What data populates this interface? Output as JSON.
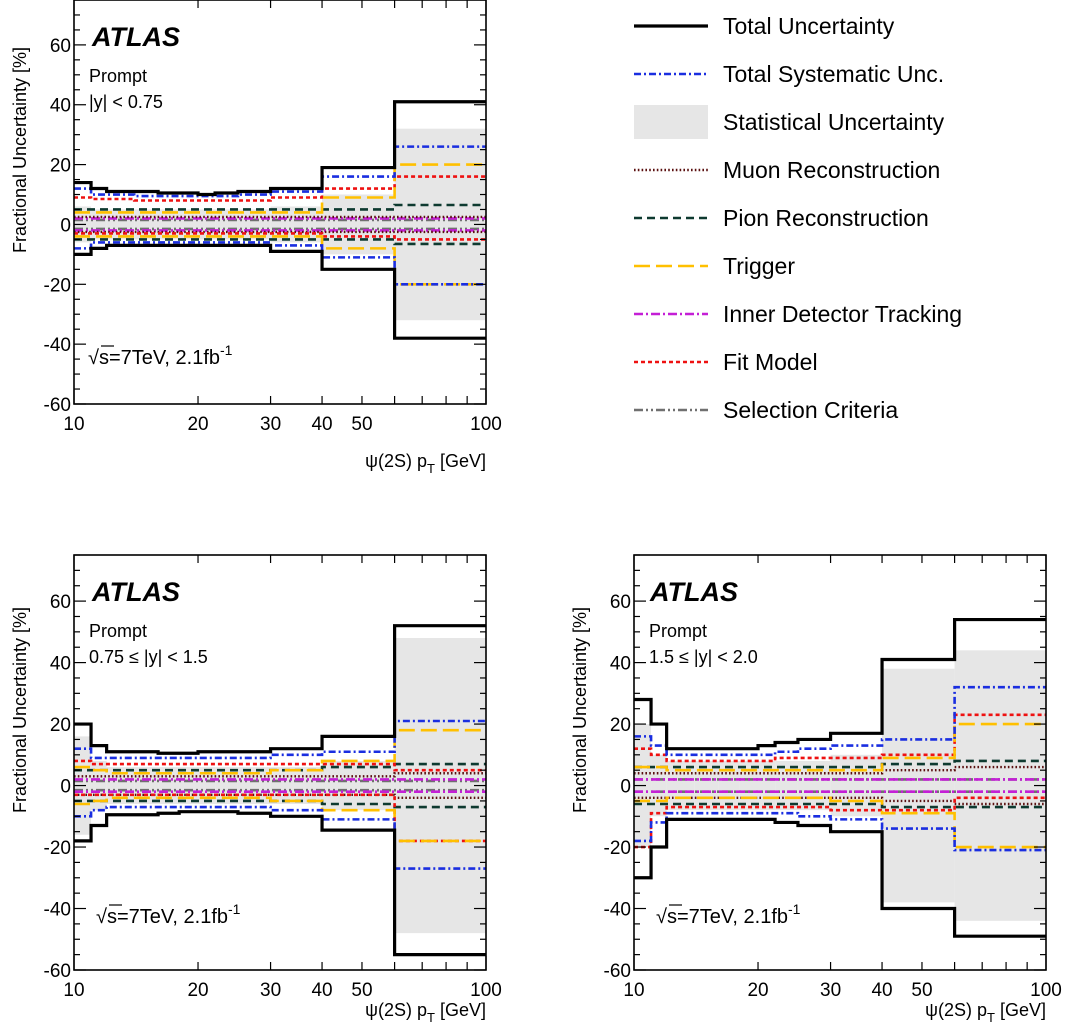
{
  "chart_data": [
    {
      "type": "line",
      "panel": "top-left",
      "experiment": "ATLAS",
      "title": "Prompt",
      "subtitle": "|y| < 0.75",
      "energy_label": {
        "sqrts": "s",
        "rest": "=7TeV, 2.1fb",
        "sup": "-1"
      },
      "xlabel": {
        "main": "ψ(2S) p",
        "sub": "T",
        "tail": " [GeV]"
      },
      "ylabel": "Fractional Uncertainty [%]",
      "xscale": "log",
      "xlim": [
        10,
        100
      ],
      "ylim": [
        -60,
        75
      ],
      "xticks": [
        10,
        20,
        30,
        40,
        50,
        100
      ],
      "yticks": [
        -60,
        -40,
        -20,
        0,
        20,
        40,
        60
      ],
      "bin_edges": [
        10,
        11,
        12,
        14,
        16,
        18,
        20,
        22,
        25,
        30,
        40,
        60,
        100
      ],
      "stat_band": {
        "name": "Statistical Uncertainty",
        "up": [
          6,
          5,
          5,
          5,
          5,
          5,
          5,
          5,
          5,
          6,
          10,
          32
        ],
        "down": [
          -6,
          -5,
          -5,
          -5,
          -5,
          -5,
          -5,
          -5,
          -5,
          -6,
          -10,
          -32
        ]
      },
      "series": [
        {
          "name": "Total Uncertainty",
          "up": [
            14,
            12,
            11,
            11,
            10.5,
            10.5,
            10,
            10.5,
            11,
            12,
            19,
            41
          ],
          "down": [
            -10,
            -8,
            -7,
            -7,
            -7,
            -7,
            -7,
            -7,
            -7,
            -9,
            -15,
            -38
          ]
        },
        {
          "name": "Total Systematic Unc.",
          "up": [
            12,
            10,
            10,
            9.5,
            9.5,
            9.5,
            9.5,
            9.5,
            10,
            11,
            16,
            26
          ],
          "down": [
            -8,
            -6,
            -6,
            -6,
            -6,
            -6,
            -6,
            -6,
            -6,
            -7,
            -11,
            -20
          ]
        },
        {
          "name": "Muon Reconstruction",
          "up": [
            2.5,
            2.5,
            2.5,
            2.5,
            2.5,
            2.5,
            2.5,
            2.5,
            2.5,
            2.5,
            2.5,
            2.5
          ],
          "down": [
            -2.5,
            -2.5,
            -2.5,
            -2.5,
            -2.5,
            -2.5,
            -2.5,
            -2.5,
            -2.5,
            -2.5,
            -2.5,
            -2.5
          ]
        },
        {
          "name": "Pion Reconstruction",
          "up": [
            5,
            5,
            5,
            5,
            5,
            5,
            5,
            5,
            5,
            5,
            5,
            6.5
          ],
          "down": [
            -5,
            -5,
            -5,
            -5,
            -5,
            -5,
            -5,
            -5,
            -5,
            -5,
            -5,
            -6.5
          ]
        },
        {
          "name": "Trigger",
          "up": [
            4,
            4,
            4,
            4,
            4,
            4,
            4,
            4,
            4,
            4,
            9,
            20
          ],
          "down": [
            -4,
            -4,
            -4,
            -4,
            -4,
            -4,
            -4,
            -4,
            -4,
            -4,
            -8,
            -20
          ]
        },
        {
          "name": "Inner Detector Tracking",
          "up": [
            2,
            2,
            2,
            2,
            2,
            2,
            2,
            2,
            2,
            2,
            2,
            2
          ],
          "down": [
            -2,
            -2,
            -2,
            -2,
            -2,
            -2,
            -2,
            -2,
            -2,
            -2,
            -2,
            -2
          ]
        },
        {
          "name": "Fit Model",
          "up": [
            9,
            8.5,
            8.5,
            8,
            8,
            8,
            8,
            8,
            8,
            9,
            12,
            16
          ],
          "down": [
            -3,
            -3,
            -3,
            -3,
            -3,
            -3,
            -3,
            -3,
            -3,
            -3,
            -4,
            -5
          ]
        },
        {
          "name": "Selection Criteria",
          "up": [
            1.5,
            1.5,
            1.5,
            1.5,
            1.5,
            1.5,
            1.5,
            1.5,
            1.5,
            1.5,
            1.5,
            1.5
          ],
          "down": [
            -1.5,
            -1.5,
            -1.5,
            -1.5,
            -1.5,
            -1.5,
            -1.5,
            -1.5,
            -1.5,
            -1.5,
            -1.5,
            -1.5
          ]
        }
      ]
    },
    {
      "type": "line",
      "panel": "bottom-left",
      "experiment": "ATLAS",
      "title": "Prompt",
      "subtitle": "0.75 ≤ |y| < 1.5",
      "energy_label": {
        "sqrts": "s",
        "rest": "=7TeV, 2.1fb",
        "sup": "-1"
      },
      "xlabel": {
        "main": "ψ(2S) p",
        "sub": "T",
        "tail": " [GeV]"
      },
      "ylabel": "Fractional Uncertainty [%]",
      "xscale": "log",
      "xlim": [
        10,
        100
      ],
      "ylim": [
        -60,
        75
      ],
      "xticks": [
        10,
        20,
        30,
        40,
        50,
        100
      ],
      "yticks": [
        -60,
        -40,
        -20,
        0,
        20,
        40,
        60
      ],
      "bin_edges": [
        10,
        11,
        12,
        14,
        16,
        18,
        20,
        22,
        25,
        30,
        40,
        60,
        100
      ],
      "stat_band": {
        "name": "Statistical Uncertainty",
        "up": [
          16,
          8,
          6,
          6,
          6,
          6,
          6,
          6,
          6,
          6,
          8,
          48
        ],
        "down": [
          -16,
          -8,
          -6,
          -6,
          -6,
          -6,
          -6,
          -6,
          -6,
          -6,
          -8,
          -48
        ]
      },
      "series": [
        {
          "name": "Total Uncertainty",
          "up": [
            20,
            13,
            11,
            11,
            10.5,
            10.5,
            11,
            11,
            11,
            12,
            16,
            52
          ],
          "down": [
            -18,
            -13,
            -9.5,
            -9.5,
            -9,
            -8.5,
            -8.5,
            -8.5,
            -9,
            -10,
            -14.5,
            -55
          ]
        },
        {
          "name": "Total Systematic Unc.",
          "up": [
            12,
            9,
            9,
            9,
            9,
            9,
            9,
            9,
            9,
            10,
            11,
            21
          ],
          "down": [
            -10,
            -8,
            -7,
            -7,
            -7,
            -7,
            -7,
            -7,
            -7,
            -8,
            -11,
            -27
          ]
        },
        {
          "name": "Muon Reconstruction",
          "up": [
            3,
            3,
            3,
            3,
            3,
            3,
            3,
            3,
            3,
            3,
            3,
            4
          ],
          "down": [
            -3,
            -3,
            -3,
            -3,
            -3,
            -3,
            -3,
            -3,
            -3,
            -3,
            -3,
            -4
          ]
        },
        {
          "name": "Pion Reconstruction",
          "up": [
            5,
            5,
            5,
            5,
            5,
            5,
            5,
            5,
            5,
            5,
            6,
            7
          ],
          "down": [
            -5,
            -5,
            -5,
            -5,
            -5,
            -5,
            -5,
            -5,
            -5,
            -5,
            -6,
            -7
          ]
        },
        {
          "name": "Trigger",
          "up": [
            6,
            5,
            4,
            4,
            4,
            4,
            4,
            4,
            4,
            5,
            8,
            18
          ],
          "down": [
            -6,
            -5,
            -4,
            -4,
            -4,
            -4,
            -4,
            -4,
            -4,
            -5,
            -8,
            -18
          ]
        },
        {
          "name": "Inner Detector Tracking",
          "up": [
            2,
            2,
            2,
            2,
            2,
            2,
            2,
            2,
            2,
            2,
            2,
            2
          ],
          "down": [
            -2,
            -2,
            -2,
            -2,
            -2,
            -2,
            -2,
            -2,
            -2,
            -2,
            -2,
            -2
          ]
        },
        {
          "name": "Fit Model",
          "up": [
            8,
            7,
            7,
            7,
            7,
            7,
            7,
            7,
            7,
            7,
            7,
            5
          ],
          "down": [
            -3,
            -3,
            -3,
            -3,
            -3,
            -3,
            -3,
            -3,
            -3,
            -3,
            -3,
            -18
          ]
        },
        {
          "name": "Selection Criteria",
          "up": [
            1.5,
            1.5,
            1.5,
            1.5,
            1.5,
            1.5,
            1.5,
            1.5,
            1.5,
            1.5,
            1.5,
            1.5
          ],
          "down": [
            -1.5,
            -1.5,
            -1.5,
            -1.5,
            -1.5,
            -1.5,
            -1.5,
            -1.5,
            -1.5,
            -1.5,
            -1.5,
            -1.5
          ]
        }
      ]
    },
    {
      "type": "line",
      "panel": "bottom-right",
      "experiment": "ATLAS",
      "title": "Prompt",
      "subtitle": "1.5 ≤ |y| < 2.0",
      "energy_label": {
        "sqrts": "s",
        "rest": "=7TeV, 2.1fb",
        "sup": "-1"
      },
      "xlabel": {
        "main": "ψ(2S) p",
        "sub": "T",
        "tail": " [GeV]"
      },
      "ylabel": "Fractional Uncertainty [%]",
      "xscale": "log",
      "xlim": [
        10,
        100
      ],
      "ylim": [
        -60,
        75
      ],
      "xticks": [
        10,
        20,
        30,
        40,
        50,
        100
      ],
      "yticks": [
        -60,
        -40,
        -20,
        0,
        20,
        40,
        60
      ],
      "bin_edges": [
        10,
        11,
        12,
        14,
        16,
        18,
        20,
        22,
        25,
        30,
        40,
        60,
        100
      ],
      "stat_band": {
        "name": "Statistical Uncertainty",
        "up": [
          20,
          10,
          8,
          8,
          8,
          8,
          8,
          8,
          8,
          10,
          38,
          44
        ],
        "down": [
          -20,
          -10,
          -8,
          -8,
          -8,
          -8,
          -8,
          -8,
          -8,
          -10,
          -38,
          -44
        ]
      },
      "series": [
        {
          "name": "Total Uncertainty",
          "up": [
            28,
            20,
            12,
            12,
            12,
            12,
            13,
            14,
            15,
            17,
            41,
            54
          ],
          "down": [
            -30,
            -20,
            -11,
            -11,
            -11,
            -11,
            -11,
            -12,
            -13,
            -15,
            -40,
            -49
          ]
        },
        {
          "name": "Total Systematic Unc.",
          "up": [
            16,
            13,
            10,
            10,
            10,
            10,
            10,
            11,
            12,
            13,
            15,
            32
          ],
          "down": [
            -18,
            -12,
            -9,
            -9,
            -9,
            -9,
            -9,
            -9,
            -10,
            -11,
            -14,
            -21
          ]
        },
        {
          "name": "Muon Reconstruction",
          "up": [
            4,
            4,
            4,
            4,
            4,
            4,
            4,
            4,
            4,
            4,
            5,
            6
          ],
          "down": [
            -4,
            -4,
            -4,
            -4,
            -4,
            -4,
            -4,
            -4,
            -4,
            -4,
            -5,
            -6
          ]
        },
        {
          "name": "Pion Reconstruction",
          "up": [
            6,
            6,
            6,
            6,
            6,
            6,
            6,
            6,
            6,
            6,
            7,
            8
          ],
          "down": [
            -6,
            -6,
            -6,
            -6,
            -6,
            -6,
            -6,
            -6,
            -6,
            -6,
            -7,
            -7
          ]
        },
        {
          "name": "Trigger",
          "up": [
            6,
            6,
            5,
            5,
            5,
            5,
            5,
            5,
            5,
            5,
            9,
            20
          ],
          "down": [
            -5,
            -5,
            -4,
            -4,
            -4,
            -4,
            -4,
            -4,
            -4,
            -5,
            -9,
            -20
          ]
        },
        {
          "name": "Inner Detector Tracking",
          "up": [
            2,
            2,
            2,
            2,
            2,
            2,
            2,
            2,
            2,
            2,
            2,
            2
          ],
          "down": [
            -2,
            -2,
            -2,
            -2,
            -2,
            -2,
            -2,
            -2,
            -2,
            -2,
            -2,
            -2
          ]
        },
        {
          "name": "Fit Model",
          "up": [
            12,
            10,
            8,
            8,
            8,
            8,
            8,
            9,
            9,
            9,
            10,
            23
          ],
          "down": [
            -20,
            -9,
            -7,
            -7,
            -7,
            -7,
            -7,
            -7,
            -7,
            -8,
            -8,
            -4
          ]
        },
        {
          "name": "Selection Criteria",
          "up": [
            2,
            2,
            2,
            2,
            2,
            2,
            2,
            2,
            2,
            2,
            2,
            2
          ],
          "down": [
            -2,
            -2,
            -2,
            -2,
            -2,
            -2,
            -2,
            -2,
            -2,
            -2,
            -2,
            -2
          ]
        }
      ]
    }
  ],
  "legend": {
    "placement": "top-right",
    "entries": [
      {
        "name": "Total Uncertainty",
        "style": "solid",
        "color": "#000000"
      },
      {
        "name": "Total Systematic Unc.",
        "style": "dash-dot",
        "color": "#1a2ee0"
      },
      {
        "name": "Statistical Uncertainty",
        "style": "band",
        "color": "#e6e6e6"
      },
      {
        "name": "Muon Reconstruction",
        "style": "dotted",
        "color": "#5a1010"
      },
      {
        "name": "Pion Reconstruction",
        "style": "dashed",
        "color": "#0e3a30"
      },
      {
        "name": "Trigger",
        "style": "long-dash",
        "color": "#ffc000"
      },
      {
        "name": "Inner Detector Tracking",
        "style": "dash-dot",
        "color": "#c41fd6"
      },
      {
        "name": "Fit Model",
        "style": "short-dash",
        "color": "#ee1111"
      },
      {
        "name": "Selection Criteria",
        "style": "dash-dot-dot",
        "color": "#707070"
      }
    ]
  }
}
